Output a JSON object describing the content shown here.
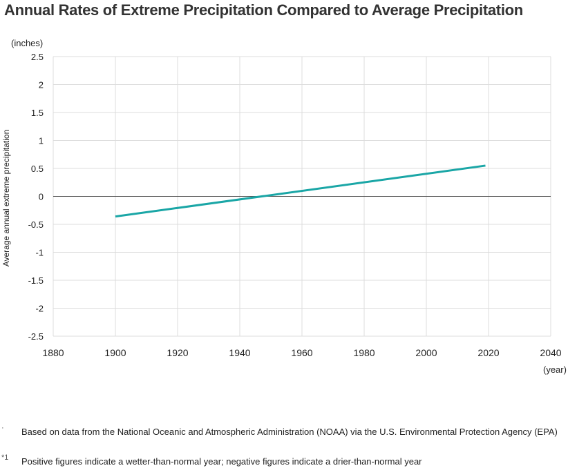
{
  "title": "Annual Rates of Extreme Precipitation Compared to Average Precipitation",
  "chart_data": {
    "type": "line",
    "ylabel": "Average annual extreme precipitation",
    "y_unit": "(inches)",
    "x_unit": "(year)",
    "xlim": [
      1880,
      2040
    ],
    "ylim": [
      -2.5,
      2.5
    ],
    "x_ticks": [
      1880,
      1900,
      1920,
      1940,
      1960,
      1980,
      2000,
      2020,
      2040
    ],
    "y_ticks": [
      2.5,
      2,
      1.5,
      1,
      0.5,
      0,
      -0.5,
      -1,
      -1.5,
      -2,
      -2.5
    ],
    "y_tick_labels": [
      "2.5",
      "2",
      "1.5",
      "1",
      "0.5",
      "0",
      "-0.5",
      "-1",
      "-1.5",
      "-2",
      "-2.5"
    ],
    "grid": true,
    "series": [
      {
        "x": [
          1900,
          2019
        ],
        "y": [
          -0.36,
          0.55
        ],
        "color": "#1aa6a6"
      }
    ]
  },
  "notes": [
    {
      "marker": "·",
      "text": "Based on data from the National Oceanic and Atmospheric Administration (NOAA) via the U.S. Environmental Protection Agency (EPA)"
    },
    {
      "marker": "*1",
      "text": "Positive figures indicate a wetter-than-normal year; negative figures indicate a drier-than-normal year"
    }
  ]
}
